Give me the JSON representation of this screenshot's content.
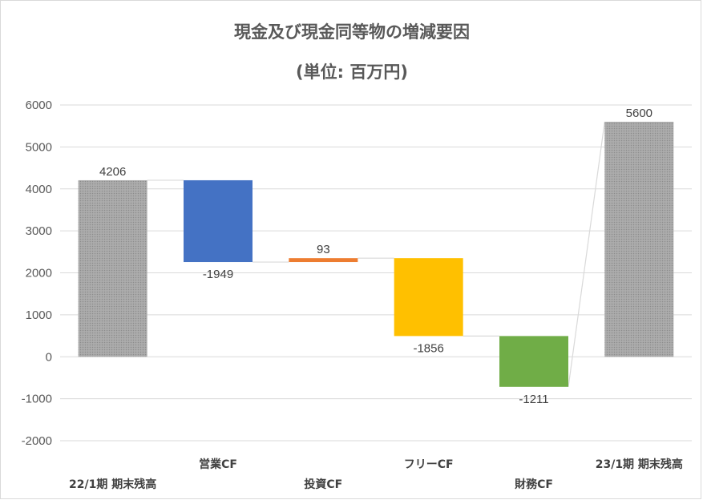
{
  "chart_data": {
    "type": "bar",
    "subtype": "waterfall",
    "title": "現金及び現金同等物の増減要因",
    "subtitle": "(単位: 百万円)",
    "categories": [
      "22/1期 期末残高",
      "営業CF",
      "投資CF",
      "フリーCF",
      "財務CF",
      "23/1期 期末残高"
    ],
    "values": [
      4206,
      -1949,
      93,
      -1856,
      -1211,
      5600
    ],
    "bars": [
      {
        "category": "22/1期 期末残高",
        "value": 4206,
        "start": 0,
        "end": 4206,
        "label": "4206",
        "color": "#a6a6a6",
        "textured": true
      },
      {
        "category": "営業CF",
        "value": -1949,
        "start": 4206,
        "end": 2257,
        "label": "-1949",
        "color": "#4472c4",
        "textured": false
      },
      {
        "category": "投資CF",
        "value": 93,
        "start": 2257,
        "end": 2350,
        "label": "93",
        "color": "#ed7d31",
        "textured": false
      },
      {
        "category": "フリーCF",
        "value": -1856,
        "start": 2350,
        "end": 494,
        "label": "-1856",
        "color": "#ffc000",
        "textured": false
      },
      {
        "category": "財務CF",
        "value": -1211,
        "start": 494,
        "end": -717,
        "label": "-1211",
        "color": "#70ad47",
        "textured": false
      },
      {
        "category": "23/1期 期末残高",
        "value": 5600,
        "start": 0,
        "end": 5600,
        "label": "5600",
        "color": "#a6a6a6",
        "textured": true
      }
    ],
    "yticks": [
      "6000",
      "5000",
      "4000",
      "3000",
      "2000",
      "1000",
      "0",
      "-1000",
      "-2000"
    ],
    "ylim": [
      -2000,
      6000
    ],
    "grid": true,
    "legend": "none",
    "xlabel": "",
    "ylabel": "",
    "colors": {
      "gridline": "#d9d9d9",
      "connector": "#d9d9d9",
      "text": "#595959"
    }
  }
}
